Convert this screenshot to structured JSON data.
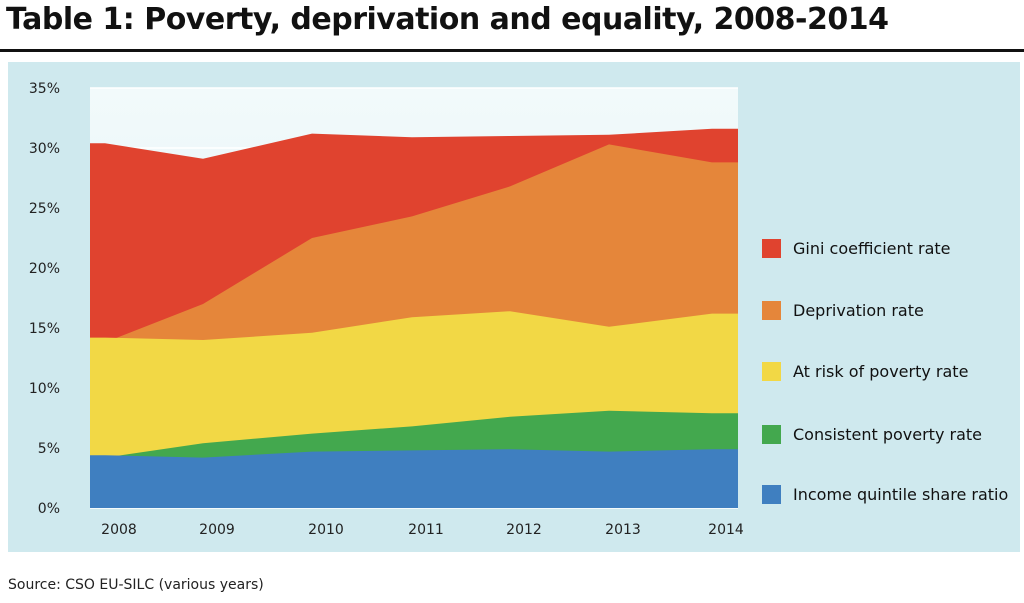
{
  "title": "Table 1: Poverty, deprivation and equality, 2008-2014",
  "source": "Source: CSO EU-SILC (various years)",
  "chart_data": {
    "type": "area",
    "stacked": false,
    "x": [
      "2008",
      "2009",
      "2010",
      "2011",
      "2012",
      "2013",
      "2014"
    ],
    "y_ticks": [
      "0%",
      "5%",
      "10%",
      "15%",
      "20%",
      "25%",
      "30%",
      "35%"
    ],
    "ylim": [
      0,
      35
    ],
    "grid": true,
    "legend_position": "right",
    "series": [
      {
        "name": "Gini coefficient rate",
        "color": "#e0432f",
        "values": [
          30.4,
          29.1,
          31.2,
          30.9,
          31.0,
          31.1,
          31.6
        ]
      },
      {
        "name": "Deprivation rate",
        "color": "#e5863a",
        "values": [
          13.8,
          17.0,
          22.5,
          24.3,
          26.8,
          30.3,
          28.8
        ]
      },
      {
        "name": "At risk of poverty rate",
        "color": "#f2d845",
        "values": [
          14.2,
          14.0,
          14.6,
          15.9,
          16.4,
          15.1,
          16.2
        ]
      },
      {
        "name": "Consistent poverty rate",
        "color": "#43a84e",
        "values": [
          4.2,
          5.4,
          6.2,
          6.8,
          7.6,
          8.1,
          7.9
        ]
      },
      {
        "name": "Income quintile share ratio",
        "color": "#3f7fc0",
        "values": [
          4.4,
          4.2,
          4.7,
          4.8,
          4.9,
          4.7,
          4.9
        ]
      }
    ]
  }
}
